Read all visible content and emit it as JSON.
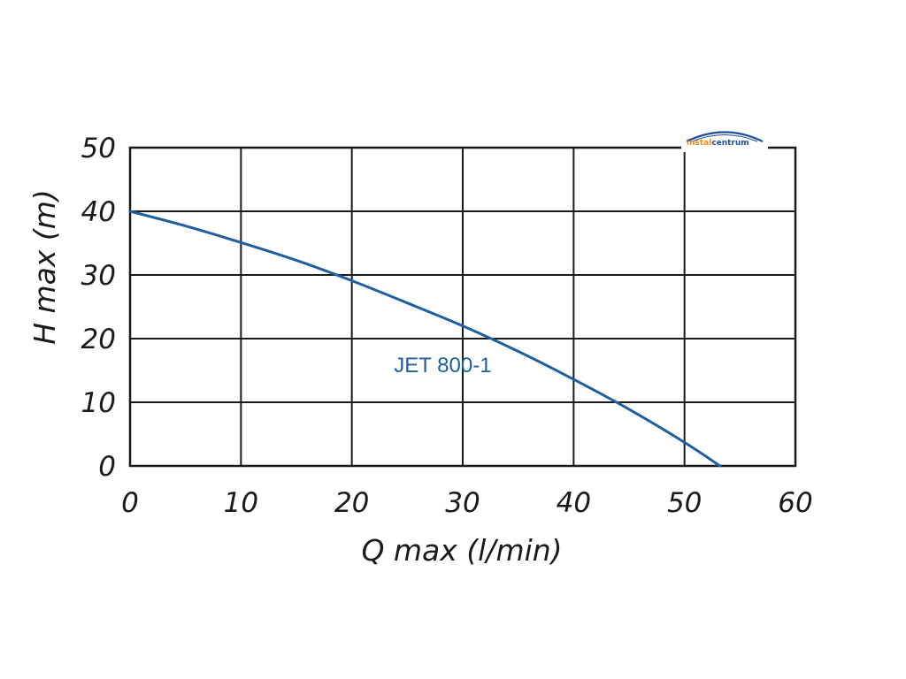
{
  "chart_data": {
    "type": "line",
    "title": "",
    "xlabel": "Q max (l/min)",
    "ylabel": "H max (m)",
    "xlim": [
      0,
      60
    ],
    "ylim": [
      0,
      50
    ],
    "x_ticks": [
      0,
      10,
      20,
      30,
      40,
      50,
      60
    ],
    "y_ticks": [
      0,
      10,
      20,
      30,
      40,
      50
    ],
    "grid": true,
    "series": [
      {
        "name": "JET 800-1",
        "color": "#1f5fa0",
        "x": [
          0,
          5,
          10,
          15,
          20,
          25,
          30,
          35,
          40,
          45,
          50,
          53.2
        ],
        "y": [
          40,
          37.7,
          35.1,
          32.3,
          29.1,
          25.6,
          22.0,
          18.0,
          13.6,
          8.9,
          3.7,
          0
        ]
      }
    ]
  },
  "logo": {
    "text_left": "instal",
    "text_right": "centrum"
  },
  "colors": {
    "curve": "#1f5fa0",
    "grid": "#1a1a1a",
    "logo_orange": "#f08a1c",
    "logo_blue": "#1d4f9c"
  }
}
